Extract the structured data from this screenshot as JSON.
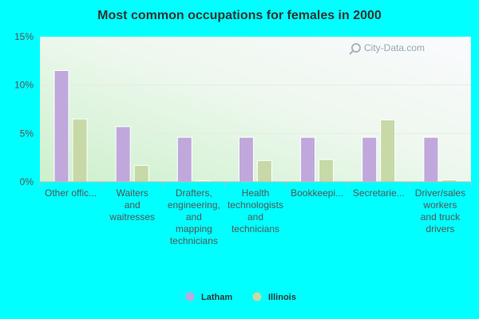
{
  "chart_data": {
    "type": "bar",
    "title": "Most common occupations for females in 2000",
    "xlabel": "",
    "ylabel": "",
    "ylim": [
      0,
      15
    ],
    "yticks": [
      "0%",
      "5%",
      "10%",
      "15%"
    ],
    "grid": true,
    "legend_position": "bottom",
    "categories": [
      [
        "Other offic..."
      ],
      [
        "Waiters",
        "and",
        "waitresses"
      ],
      [
        "Drafters,",
        "engineering,",
        "and",
        "mapping",
        "technicians"
      ],
      [
        "Health",
        "technologists",
        "and",
        "technicians"
      ],
      [
        "Bookkeepi..."
      ],
      [
        "Secretarie..."
      ],
      [
        "Driver/sales",
        "workers",
        "and truck",
        "drivers"
      ]
    ],
    "series": [
      {
        "name": "Latham",
        "color": "#c0a8dc",
        "values": [
          11.5,
          5.7,
          4.6,
          4.6,
          4.6,
          4.6,
          4.6
        ]
      },
      {
        "name": "Illinois",
        "color": "#c6d9a6",
        "values": [
          6.5,
          1.7,
          0.1,
          2.2,
          2.3,
          6.4,
          0.2
        ]
      }
    ]
  },
  "watermark": "City-Data.com"
}
